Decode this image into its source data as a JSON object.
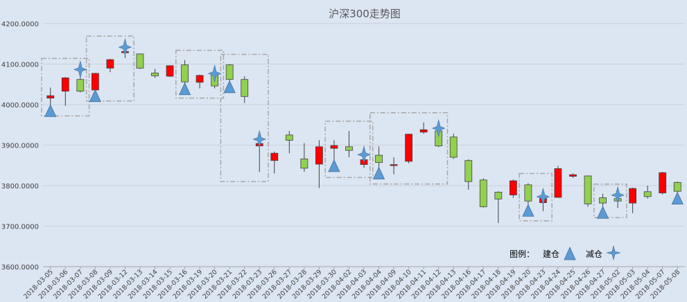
{
  "chart_data": {
    "type": "candlestick",
    "title": "沪深300走势图",
    "yticks": [
      "3600.0000",
      "3700.0000",
      "3800.0000",
      "3900.0000",
      "4000.0000",
      "4100.0000",
      "4200.0000"
    ],
    "ylim": [
      3600,
      4200
    ],
    "grid": "horizontal",
    "up_color": "#ff0000",
    "down_color": "#92d050",
    "marker_color": "#5b9bd5",
    "dates": [
      "2018-03-05",
      "2018-03-06",
      "2018-03-07",
      "2018-03-08",
      "2018-03-09",
      "2018-03-12",
      "2018-03-13",
      "2018-03-14",
      "2018-03-15",
      "2018-03-16",
      "2018-03-19",
      "2018-03-20",
      "2018-03-21",
      "2018-03-22",
      "2018-03-23",
      "2018-03-26",
      "2018-03-27",
      "2018-03-28",
      "2018-03-29",
      "2018-03-30",
      "2018-04-02",
      "2018-04-03",
      "2018-04-04",
      "2018-04-09",
      "2018-04-10",
      "2018-04-11",
      "2018-04-12",
      "2018-04-13",
      "2018-04-16",
      "2018-04-17",
      "2018-04-18",
      "2018-04-19",
      "2018-04-20",
      "2018-04-23",
      "2018-04-24",
      "2018-04-25",
      "2018-04-26",
      "2018-04-27",
      "2018-05-02",
      "2018-05-03",
      "2018-05-04",
      "2018-05-07",
      "2018-05-08"
    ],
    "ohlc": [
      [
        4016,
        4022,
        3996,
        4042
      ],
      [
        4033,
        4066,
        3997,
        4068
      ],
      [
        4062,
        4033,
        4030,
        4090
      ],
      [
        4036,
        4077,
        4033,
        4078
      ],
      [
        4090,
        4111,
        4080,
        4113
      ],
      [
        4128,
        4131,
        4115,
        4145
      ],
      [
        4125,
        4090,
        4088,
        4126
      ],
      [
        4078,
        4071,
        4066,
        4088
      ],
      [
        4070,
        4096,
        4068,
        4097
      ],
      [
        4098,
        4056,
        4050,
        4110
      ],
      [
        4055,
        4072,
        4040,
        4074
      ],
      [
        4078,
        4046,
        4040,
        4080
      ],
      [
        4098,
        4062,
        4055,
        4100
      ],
      [
        4062,
        4020,
        4004,
        4070
      ],
      [
        3898,
        3904,
        3834,
        3918
      ],
      [
        3862,
        3880,
        3830,
        3884
      ],
      [
        3925,
        3912,
        3880,
        3935
      ],
      [
        3866,
        3843,
        3834,
        3905
      ],
      [
        3853,
        3896,
        3794,
        3912
      ],
      [
        3892,
        3899,
        3860,
        3912
      ],
      [
        3896,
        3887,
        3870,
        3935
      ],
      [
        3852,
        3864,
        3844,
        3880
      ],
      [
        3875,
        3857,
        3842,
        3897
      ],
      [
        3852,
        3852,
        3828,
        3870
      ],
      [
        3860,
        3927,
        3855,
        3928
      ],
      [
        3932,
        3938,
        3928,
        3956
      ],
      [
        3935,
        3898,
        3895,
        3945
      ],
      [
        3920,
        3870,
        3866,
        3928
      ],
      [
        3862,
        3810,
        3790,
        3865
      ],
      [
        3814,
        3748,
        3746,
        3818
      ],
      [
        3784,
        3767,
        3708,
        3786
      ],
      [
        3777,
        3812,
        3770,
        3815
      ],
      [
        3802,
        3762,
        3750,
        3806
      ],
      [
        3758,
        3768,
        3737,
        3776
      ],
      [
        3771,
        3842,
        3770,
        3849
      ],
      [
        3823,
        3827,
        3819,
        3830
      ],
      [
        3824,
        3755,
        3748,
        3825
      ],
      [
        3770,
        3757,
        3745,
        3780
      ],
      [
        3768,
        3762,
        3745,
        3780
      ],
      [
        3757,
        3793,
        3732,
        3795
      ],
      [
        3785,
        3773,
        3768,
        3800
      ],
      [
        3782,
        3832,
        3778,
        3834
      ],
      [
        3808,
        3786,
        3780,
        3810
      ]
    ],
    "build_markers": [
      0,
      3,
      9,
      12,
      19,
      22,
      32,
      37,
      42
    ],
    "reduce_markers": [
      2,
      5,
      11,
      14,
      21,
      26,
      33,
      38
    ],
    "highlight_boxes": [
      [
        0,
        2
      ],
      [
        3,
        5
      ],
      [
        9,
        11
      ],
      [
        12,
        14
      ],
      [
        19,
        21
      ],
      [
        22,
        26
      ],
      [
        32,
        33
      ],
      [
        37,
        38
      ]
    ],
    "legend": {
      "label": "图例：",
      "build": "建仓",
      "reduce": "减仓"
    }
  }
}
